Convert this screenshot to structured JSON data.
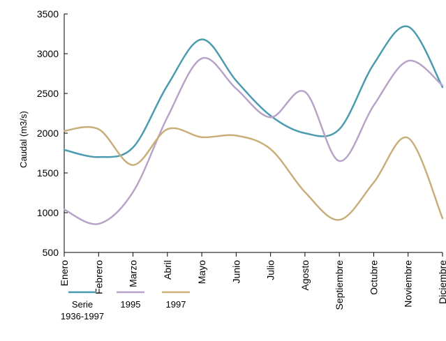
{
  "chart_data": {
    "type": "line",
    "title": "",
    "xlabel": "",
    "ylabel": "Caudal (m3/s)",
    "ylim": [
      500,
      3500
    ],
    "yticks": [
      500,
      1000,
      1500,
      2000,
      2500,
      3000,
      3500
    ],
    "categories": [
      "Enero",
      "Febrero",
      "Marzo",
      "Abril",
      "Mayo",
      "Junio",
      "Julio",
      "Agosto",
      "Septiembre",
      "Octubre",
      "Noviembre",
      "Diciembre"
    ],
    "grid": false,
    "legend_position": "bottom-left",
    "series": [
      {
        "name": "Serie\n1936-1997",
        "color": "#4b9bb0",
        "values": [
          1790,
          1700,
          1820,
          2600,
          3180,
          2660,
          2220,
          2000,
          2050,
          2870,
          3340,
          2580
        ]
      },
      {
        "name": "1995",
        "color": "#b8a3c8",
        "values": [
          1040,
          860,
          1260,
          2200,
          2940,
          2560,
          2200,
          2520,
          1650,
          2350,
          2910,
          2600
        ]
      },
      {
        "name": "1997",
        "color": "#c8ae78",
        "values": [
          2030,
          2050,
          1600,
          2050,
          1950,
          1970,
          1800,
          1260,
          910,
          1380,
          1940,
          930
        ]
      }
    ]
  }
}
